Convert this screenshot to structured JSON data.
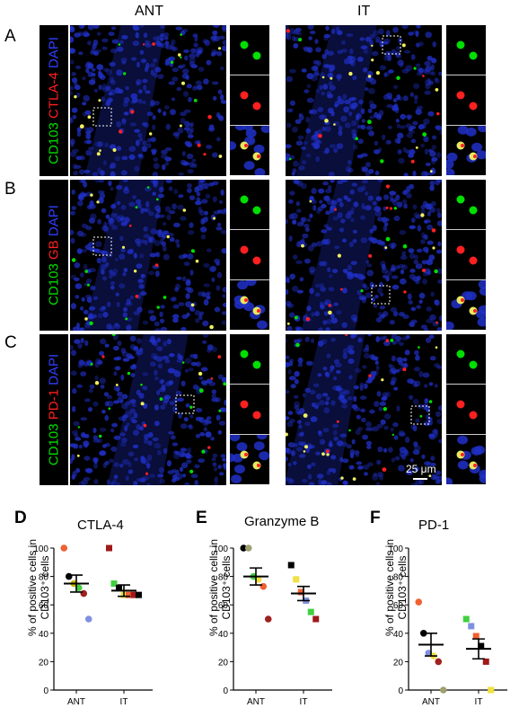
{
  "columns": {
    "ant": "ANT",
    "it": "IT"
  },
  "panels": [
    {
      "letter": "A",
      "marker1": "CD103",
      "marker2": "CTLA-4",
      "marker3": "DAPI"
    },
    {
      "letter": "B",
      "marker1": "CD103",
      "marker2": "GB",
      "marker3": "DAPI"
    },
    {
      "letter": "C",
      "marker1": "CD103",
      "marker2": "PD-1",
      "marker3": "DAPI"
    }
  ],
  "scale_bar": "25 μm",
  "colors": {
    "cd103": "#00e000",
    "marker": "#ff2020",
    "dapi": "#2030c8",
    "bg": "#000000"
  },
  "chart_data": [
    {
      "letter": "D",
      "type": "scatter",
      "title": "CTLA-4",
      "ylabel": "% of positive cells in CD103⁺ cells",
      "categories": [
        "ANT",
        "IT"
      ],
      "ylim": [
        0,
        100
      ],
      "yticks": [
        0,
        20,
        40,
        60,
        80,
        100
      ],
      "series": [
        {
          "category": "ANT",
          "mean": 75,
          "sem": 6,
          "points": [
            {
              "y": 100,
              "color": "#f06030",
              "shape": "circle"
            },
            {
              "y": 80,
              "color": "#000000",
              "shape": "circle"
            },
            {
              "y": 75,
              "color": "#c8b400",
              "shape": "circle"
            },
            {
              "y": 72,
              "color": "#40d040",
              "shape": "circle"
            },
            {
              "y": 68,
              "color": "#a02020",
              "shape": "circle"
            },
            {
              "y": 50,
              "color": "#8090e0",
              "shape": "circle"
            }
          ]
        },
        {
          "category": "IT",
          "mean": 70,
          "sem": 4,
          "points": [
            {
              "y": 100,
              "color": "#a01818",
              "shape": "square"
            },
            {
              "y": 75,
              "color": "#40d040",
              "shape": "square"
            },
            {
              "y": 72,
              "color": "#000000",
              "shape": "square"
            },
            {
              "y": 67,
              "color": "#f0e040",
              "shape": "square"
            },
            {
              "y": 67,
              "color": "#f06030",
              "shape": "square"
            },
            {
              "y": 67,
              "color": "#a01818",
              "shape": "square"
            },
            {
              "y": 67,
              "color": "#000000",
              "shape": "square"
            }
          ]
        }
      ]
    },
    {
      "letter": "E",
      "type": "scatter",
      "title": "Granzyme B",
      "ylabel": "% of positive cells in CD103⁺ cells",
      "categories": [
        "ANT",
        "IT"
      ],
      "ylim": [
        0,
        100
      ],
      "yticks": [
        0,
        20,
        40,
        60,
        80,
        100
      ],
      "series": [
        {
          "category": "ANT",
          "mean": 80,
          "sem": 6,
          "points": [
            {
              "y": 100,
              "color": "#000000",
              "shape": "circle"
            },
            {
              "y": 100,
              "color": "#a0a070",
              "shape": "circle"
            },
            {
              "y": 80,
              "color": "#40d040",
              "shape": "circle"
            },
            {
              "y": 78,
              "color": "#f0e040",
              "shape": "circle"
            },
            {
              "y": 73,
              "color": "#f06030",
              "shape": "circle"
            },
            {
              "y": 50,
              "color": "#a02020",
              "shape": "circle"
            }
          ]
        },
        {
          "category": "IT",
          "mean": 68,
          "sem": 5,
          "points": [
            {
              "y": 88,
              "color": "#000000",
              "shape": "square"
            },
            {
              "y": 78,
              "color": "#f0e040",
              "shape": "square"
            },
            {
              "y": 69,
              "color": "#f06030",
              "shape": "square"
            },
            {
              "y": 63,
              "color": "#8090e0",
              "shape": "square"
            },
            {
              "y": 55,
              "color": "#40d040",
              "shape": "square"
            },
            {
              "y": 50,
              "color": "#a01818",
              "shape": "square"
            }
          ]
        }
      ]
    },
    {
      "letter": "F",
      "type": "scatter",
      "title": "PD-1",
      "ylabel": "% of positive cells in CD103⁺ cells",
      "categories": [
        "ANT",
        "IT"
      ],
      "ylim": [
        0,
        100
      ],
      "yticks": [
        0,
        20,
        40,
        60,
        80,
        100
      ],
      "series": [
        {
          "category": "ANT",
          "mean": 32,
          "sem": 8,
          "points": [
            {
              "y": 62,
              "color": "#f06030",
              "shape": "circle"
            },
            {
              "y": 40,
              "color": "#000000",
              "shape": "circle"
            },
            {
              "y": 26,
              "color": "#8090e0",
              "shape": "circle"
            },
            {
              "y": 24,
              "color": "#f0e040",
              "shape": "circle"
            },
            {
              "y": 20,
              "color": "#a02020",
              "shape": "circle"
            },
            {
              "y": 0,
              "color": "#a0a070",
              "shape": "circle"
            }
          ]
        },
        {
          "category": "IT",
          "mean": 29,
          "sem": 7,
          "points": [
            {
              "y": 50,
              "color": "#40d040",
              "shape": "square"
            },
            {
              "y": 45,
              "color": "#8090e0",
              "shape": "square"
            },
            {
              "y": 38,
              "color": "#f06030",
              "shape": "square"
            },
            {
              "y": 31,
              "color": "#000000",
              "shape": "square"
            },
            {
              "y": 20,
              "color": "#a01818",
              "shape": "square"
            },
            {
              "y": 0,
              "color": "#f0e040",
              "shape": "square"
            }
          ]
        }
      ]
    }
  ]
}
